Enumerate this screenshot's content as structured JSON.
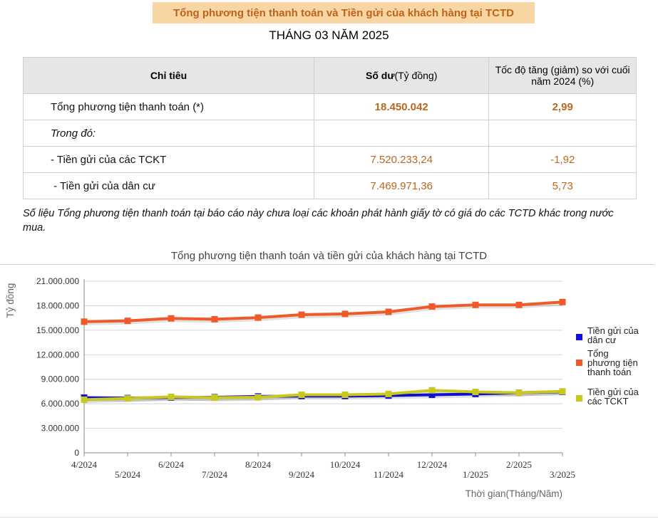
{
  "header": {
    "title": "Tổng phương tiện thanh toán và Tiền gửi của khách hàng tại TCTD",
    "period": "THÁNG 03 NĂM 2025"
  },
  "table": {
    "headers": [
      "Chỉ tiêu",
      "Số dư(Tỷ đồng)",
      "Tốc độ tăng (giảm) so với cuối năm 2024 (%)"
    ],
    "header_parts": {
      "balance_bold": "Số dư",
      "balance_unit": "(Tỷ đồng)"
    },
    "rows": [
      {
        "label": "Tổng phương tiện thanh toán (*)",
        "balance": "18.450.042",
        "growth": "2,99"
      },
      {
        "label": "Trong đó:",
        "balance": "",
        "growth": ""
      },
      {
        "label": "- Tiền gửi của các TCKT",
        "balance": "7.520.233,24",
        "growth": "-1,92"
      },
      {
        "label": " - Tiền gửi của dân cư",
        "balance": "7.469.971,36",
        "growth": "5,73"
      }
    ]
  },
  "note": "Số liệu Tổng phương tiện thanh toán tại báo cáo này chưa loại các khoản phát hành giấy tờ có giá do các TCTD khác trong nước mua.",
  "chart_data": {
    "type": "line",
    "title": "Tổng phương tiện thanh toán và tiền gửi của khách hàng tại TCTD",
    "xlabel": "Thời gian(Tháng/Năm)",
    "ylabel": "Tỷ đồng",
    "categories": [
      "4/2024",
      "5/2024",
      "6/2024",
      "7/2024",
      "8/2024",
      "9/2024",
      "10/2024",
      "11/2024",
      "12/2024",
      "1/2025",
      "2/2025",
      "3/2025"
    ],
    "ylim": [
      0,
      21000000
    ],
    "yticks": [
      0,
      3000000,
      6000000,
      9000000,
      12000000,
      15000000,
      18000000,
      21000000
    ],
    "ytick_labels": [
      "0",
      "3.000.000",
      "6.000.000",
      "9.000.000",
      "12.000.000",
      "15.000.000",
      "18.000.000",
      "21.000.000"
    ],
    "grid": true,
    "legend_position": "right",
    "series": [
      {
        "name": "Tiền gửi của dân cư",
        "color": "#1010e0",
        "values": [
          6750000,
          6700000,
          6780000,
          6800000,
          6900000,
          6950000,
          6950000,
          7000000,
          7100000,
          7200000,
          7350000,
          7469971
        ]
      },
      {
        "name": "Tổng phương tiện thanh toán",
        "color": "#f05a28",
        "values": [
          16050000,
          16150000,
          16450000,
          16350000,
          16550000,
          16900000,
          17000000,
          17250000,
          17900000,
          18100000,
          18100000,
          18450042
        ]
      },
      {
        "name": "Tiền gửi của các TCKT",
        "color": "#c8c81e",
        "values": [
          6500000,
          6650000,
          6850000,
          6750000,
          6800000,
          7100000,
          7100000,
          7200000,
          7650000,
          7450000,
          7350000,
          7520233
        ]
      }
    ],
    "legend_lines": [
      [
        "Tiền gửi của",
        "dân cư"
      ],
      [
        "Tổng",
        "phương tiện",
        "thanh toán"
      ],
      [
        "Tiền gửi của",
        "các TCKT"
      ]
    ]
  }
}
